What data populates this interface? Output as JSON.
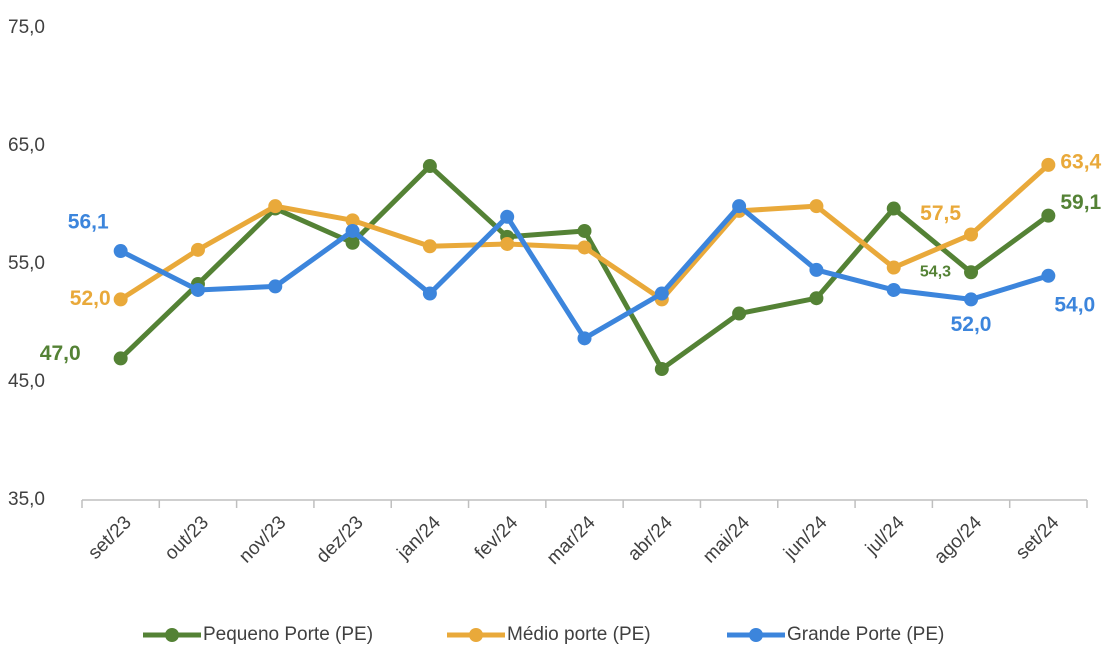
{
  "chart_data": {
    "type": "line",
    "categories": [
      "set/23",
      "out/23",
      "nov/23",
      "dez/23",
      "jan/24",
      "fev/24",
      "mar/24",
      "abr/24",
      "mai/24",
      "jun/24",
      "jul/24",
      "ago/24",
      "set/24"
    ],
    "series": [
      {
        "name": "Pequeno Porte (PE)",
        "color": "#548235",
        "values": [
          47.0,
          53.3,
          59.7,
          56.8,
          63.3,
          57.3,
          57.8,
          46.1,
          50.8,
          52.1,
          59.7,
          54.3,
          59.1
        ],
        "value_labels": [
          "47,0",
          null,
          null,
          null,
          null,
          null,
          null,
          null,
          null,
          null,
          null,
          "54,3",
          "59,1"
        ]
      },
      {
        "name": "Médio porte (PE)",
        "color": "#e9a93a",
        "values": [
          52.0,
          56.2,
          59.9,
          58.7,
          56.5,
          56.7,
          56.4,
          52.0,
          59.5,
          59.9,
          54.7,
          57.5,
          63.4
        ],
        "value_labels": [
          "52,0",
          null,
          null,
          null,
          null,
          null,
          null,
          null,
          null,
          null,
          null,
          "57,5",
          "63,4"
        ]
      },
      {
        "name": "Grande Porte (PE)",
        "color": "#3c85dc",
        "values": [
          56.1,
          52.8,
          53.1,
          57.8,
          52.5,
          59.0,
          48.7,
          52.5,
          59.9,
          54.5,
          52.8,
          52.0,
          54.0
        ],
        "value_labels": [
          "56,1",
          null,
          null,
          null,
          null,
          null,
          null,
          null,
          null,
          null,
          null,
          "52,0",
          "54,0"
        ]
      }
    ],
    "ylim": [
      35,
      75
    ],
    "yticks": [
      {
        "value": 35,
        "label": "35,0"
      },
      {
        "value": 45,
        "label": "45,0"
      },
      {
        "value": 55,
        "label": "55,0"
      },
      {
        "value": 65,
        "label": "65,0"
      },
      {
        "value": 75,
        "label": "75,0"
      }
    ],
    "grid": false,
    "legend": "bottom"
  }
}
